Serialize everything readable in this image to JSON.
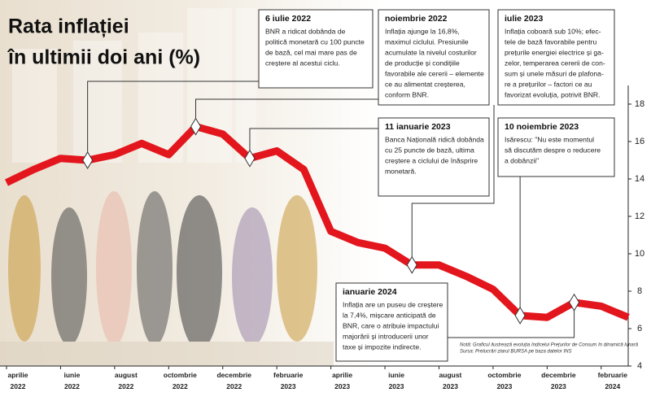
{
  "chart_data": {
    "type": "line",
    "title": [
      "Rata inflației",
      "în ultimii doi ani (%)"
    ],
    "categories": [
      "aprilie 2022",
      null,
      "iunie 2022",
      null,
      "august 2022",
      null,
      "octombrie 2022",
      null,
      "decembrie 2022",
      null,
      "februarie 2023",
      null,
      "aprilie 2023",
      null,
      "iunie 2023",
      null,
      "august 2023",
      null,
      "octombrie 2023",
      null,
      "decembrie 2023",
      null,
      "februarie 2024",
      null
    ],
    "values": [
      13.8,
      14.5,
      15.1,
      15.0,
      15.3,
      15.9,
      15.3,
      16.8,
      16.4,
      15.1,
      15.5,
      14.5,
      11.2,
      10.6,
      10.3,
      9.4,
      9.4,
      8.8,
      8.1,
      6.7,
      6.6,
      7.4,
      7.2,
      6.6
    ],
    "color": "#e3161d",
    "ylim": [
      4,
      19
    ],
    "yticks": [
      4,
      6,
      8,
      10,
      12,
      14,
      16,
      18
    ],
    "annotations": [
      {
        "title": "6 iulie 2022",
        "lines": [
          "BNR a ridicat dobânda de",
          "politică monetară cu 100 puncte",
          "de bază, cel mai mare pas de",
          "creștere al acestui ciclu."
        ]
      },
      {
        "title": "noiembrie 2022",
        "lines": [
          "Inflația ajunge la 16,8%,",
          "maximul ciclului. Presiunile",
          "acumulate la nivelul costurilor",
          "de producție și condițiile",
          "favorabile ale cererii – elemente",
          "ce au alimentat creșterea,",
          "conform BNR."
        ]
      },
      {
        "title": "iulie 2023",
        "lines": [
          "Inflația coboară sub 10%; efec-",
          "tele de bază favorabile pentru",
          "prețurile energiei electrice și ga-",
          "zelor, temperarea cererii de con-",
          "sum și unele măsuri de plafona-",
          "re a prețurilor – factori ce au",
          "favorizat evoluția, potrivit BNR."
        ]
      },
      {
        "title": "11 ianuarie 2023",
        "lines": [
          "Banca Națională ridică dobânda",
          "cu 25 puncte de bază, ultima",
          "creștere a ciclului de înăsprire",
          "monetară."
        ]
      },
      {
        "title": "10 noiembrie 2023",
        "lines": [
          "Isărescu: \"Nu este momentul",
          "să discutăm despre o reducere",
          "a dobânzii\""
        ]
      },
      {
        "title": "ianuarie 2024",
        "lines": [
          "Inflația are un puseu de creștere",
          "la 7,4%, mișcare anticipată de",
          "BNR, care o atribuie impactului",
          "majorării și introducerii unor",
          "taxe și impozite indirecte."
        ]
      }
    ],
    "notes": [
      "Notă: Graficul ilustrează evoluția Indicelui Prețurilor de Consum în dinamică lunară",
      "Sursa: Prelucrări ziarul BURSA pe baza datelor INS"
    ]
  }
}
